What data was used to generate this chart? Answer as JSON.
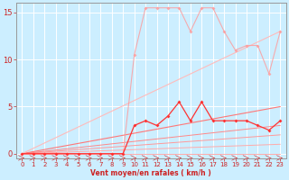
{
  "xlabel": "Vent moyen/en rafales ( km/h )",
  "bg_color": "#cceeff",
  "grid_color": "#aadddd",
  "xlim": [
    -0.5,
    23.5
  ],
  "ylim": [
    -0.5,
    16
  ],
  "xticks": [
    0,
    1,
    2,
    3,
    4,
    5,
    6,
    7,
    8,
    9,
    10,
    11,
    12,
    13,
    14,
    15,
    16,
    17,
    18,
    19,
    20,
    21,
    22,
    23
  ],
  "yticks": [
    0,
    5,
    10,
    15
  ],
  "lines": [
    {
      "x": [
        0,
        23
      ],
      "y": [
        0,
        0
      ],
      "color": "#ffaaaa",
      "lw": 0.7,
      "marker": null,
      "ms": 0,
      "alpha": 1.0
    },
    {
      "x": [
        0,
        23
      ],
      "y": [
        0,
        1.0
      ],
      "color": "#ffaaaa",
      "lw": 0.7,
      "marker": null,
      "ms": 0,
      "alpha": 1.0
    },
    {
      "x": [
        0,
        23
      ],
      "y": [
        0,
        2.0
      ],
      "color": "#ff9999",
      "lw": 0.7,
      "marker": null,
      "ms": 0,
      "alpha": 1.0
    },
    {
      "x": [
        0,
        23
      ],
      "y": [
        0,
        3.0
      ],
      "color": "#ff8888",
      "lw": 0.7,
      "marker": null,
      "ms": 0,
      "alpha": 1.0
    },
    {
      "x": [
        0,
        23
      ],
      "y": [
        0,
        5.0
      ],
      "color": "#ff7777",
      "lw": 0.8,
      "marker": null,
      "ms": 0,
      "alpha": 1.0
    },
    {
      "x": [
        0,
        23
      ],
      "y": [
        0,
        13.0
      ],
      "color": "#ffbbbb",
      "lw": 0.8,
      "marker": null,
      "ms": 0,
      "alpha": 1.0
    },
    {
      "x": [
        0,
        1,
        2,
        3,
        4,
        5,
        6,
        7,
        8,
        9,
        10,
        11,
        12,
        13,
        14,
        15,
        16,
        17,
        18,
        19,
        20,
        21,
        22,
        23
      ],
      "y": [
        0,
        0,
        0,
        0,
        0,
        0,
        0,
        0,
        0,
        0,
        10.5,
        15.5,
        15.5,
        15.5,
        15.5,
        13.0,
        15.5,
        15.5,
        13.0,
        11.0,
        11.5,
        11.5,
        8.5,
        13.0
      ],
      "color": "#ff9999",
      "lw": 0.8,
      "marker": "D",
      "ms": 2.0,
      "alpha": 0.8
    },
    {
      "x": [
        0,
        1,
        2,
        3,
        4,
        5,
        6,
        7,
        8,
        9,
        10,
        11,
        12,
        13,
        14,
        15,
        16,
        17,
        18,
        19,
        20,
        21,
        22,
        23
      ],
      "y": [
        0,
        0,
        0,
        0,
        0,
        0,
        0,
        0,
        0,
        0,
        3.0,
        3.5,
        3.0,
        4.0,
        5.5,
        3.5,
        5.5,
        3.5,
        3.5,
        3.5,
        3.5,
        3.0,
        2.5,
        3.5
      ],
      "color": "#ff3333",
      "lw": 0.9,
      "marker": "D",
      "ms": 2.0,
      "alpha": 1.0
    }
  ]
}
